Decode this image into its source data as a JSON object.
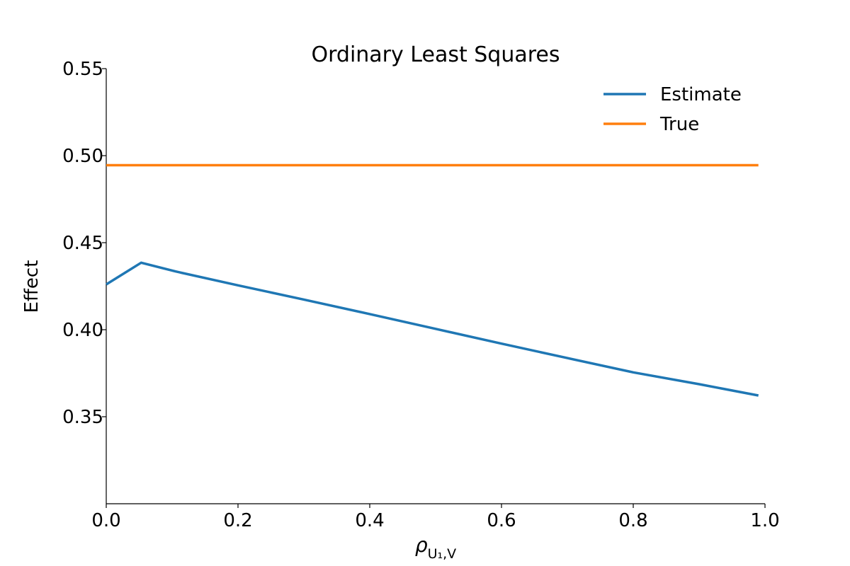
{
  "chart_data": {
    "type": "line",
    "title": "Ordinary Least Squares",
    "xlabel": "ρU₁,V",
    "ylabel": "Effect",
    "xlim": [
      0.0,
      1.0
    ],
    "ylim": [
      0.3,
      0.55
    ],
    "xticks": [
      "0.0",
      "0.2",
      "0.4",
      "0.6",
      "0.8",
      "1.0"
    ],
    "yticks": [
      "0.35",
      "0.40",
      "0.45",
      "0.50",
      "0.55"
    ],
    "grid": false,
    "legend": "top-right",
    "series": [
      {
        "name": "Estimate",
        "color": "#1f77b4",
        "x": [
          0.0,
          0.053,
          0.105,
          0.2,
          0.3,
          0.4,
          0.5,
          0.6,
          0.7,
          0.8,
          0.9,
          0.99
        ],
        "y": [
          0.426,
          0.4385,
          0.4335,
          0.4255,
          0.4173,
          0.409,
          0.4005,
          0.392,
          0.3837,
          0.3755,
          0.3687,
          0.3622
        ]
      },
      {
        "name": "True",
        "color": "#ff7f0e",
        "x": [
          0.0,
          0.99
        ],
        "y": [
          0.4945,
          0.4945
        ]
      }
    ]
  }
}
